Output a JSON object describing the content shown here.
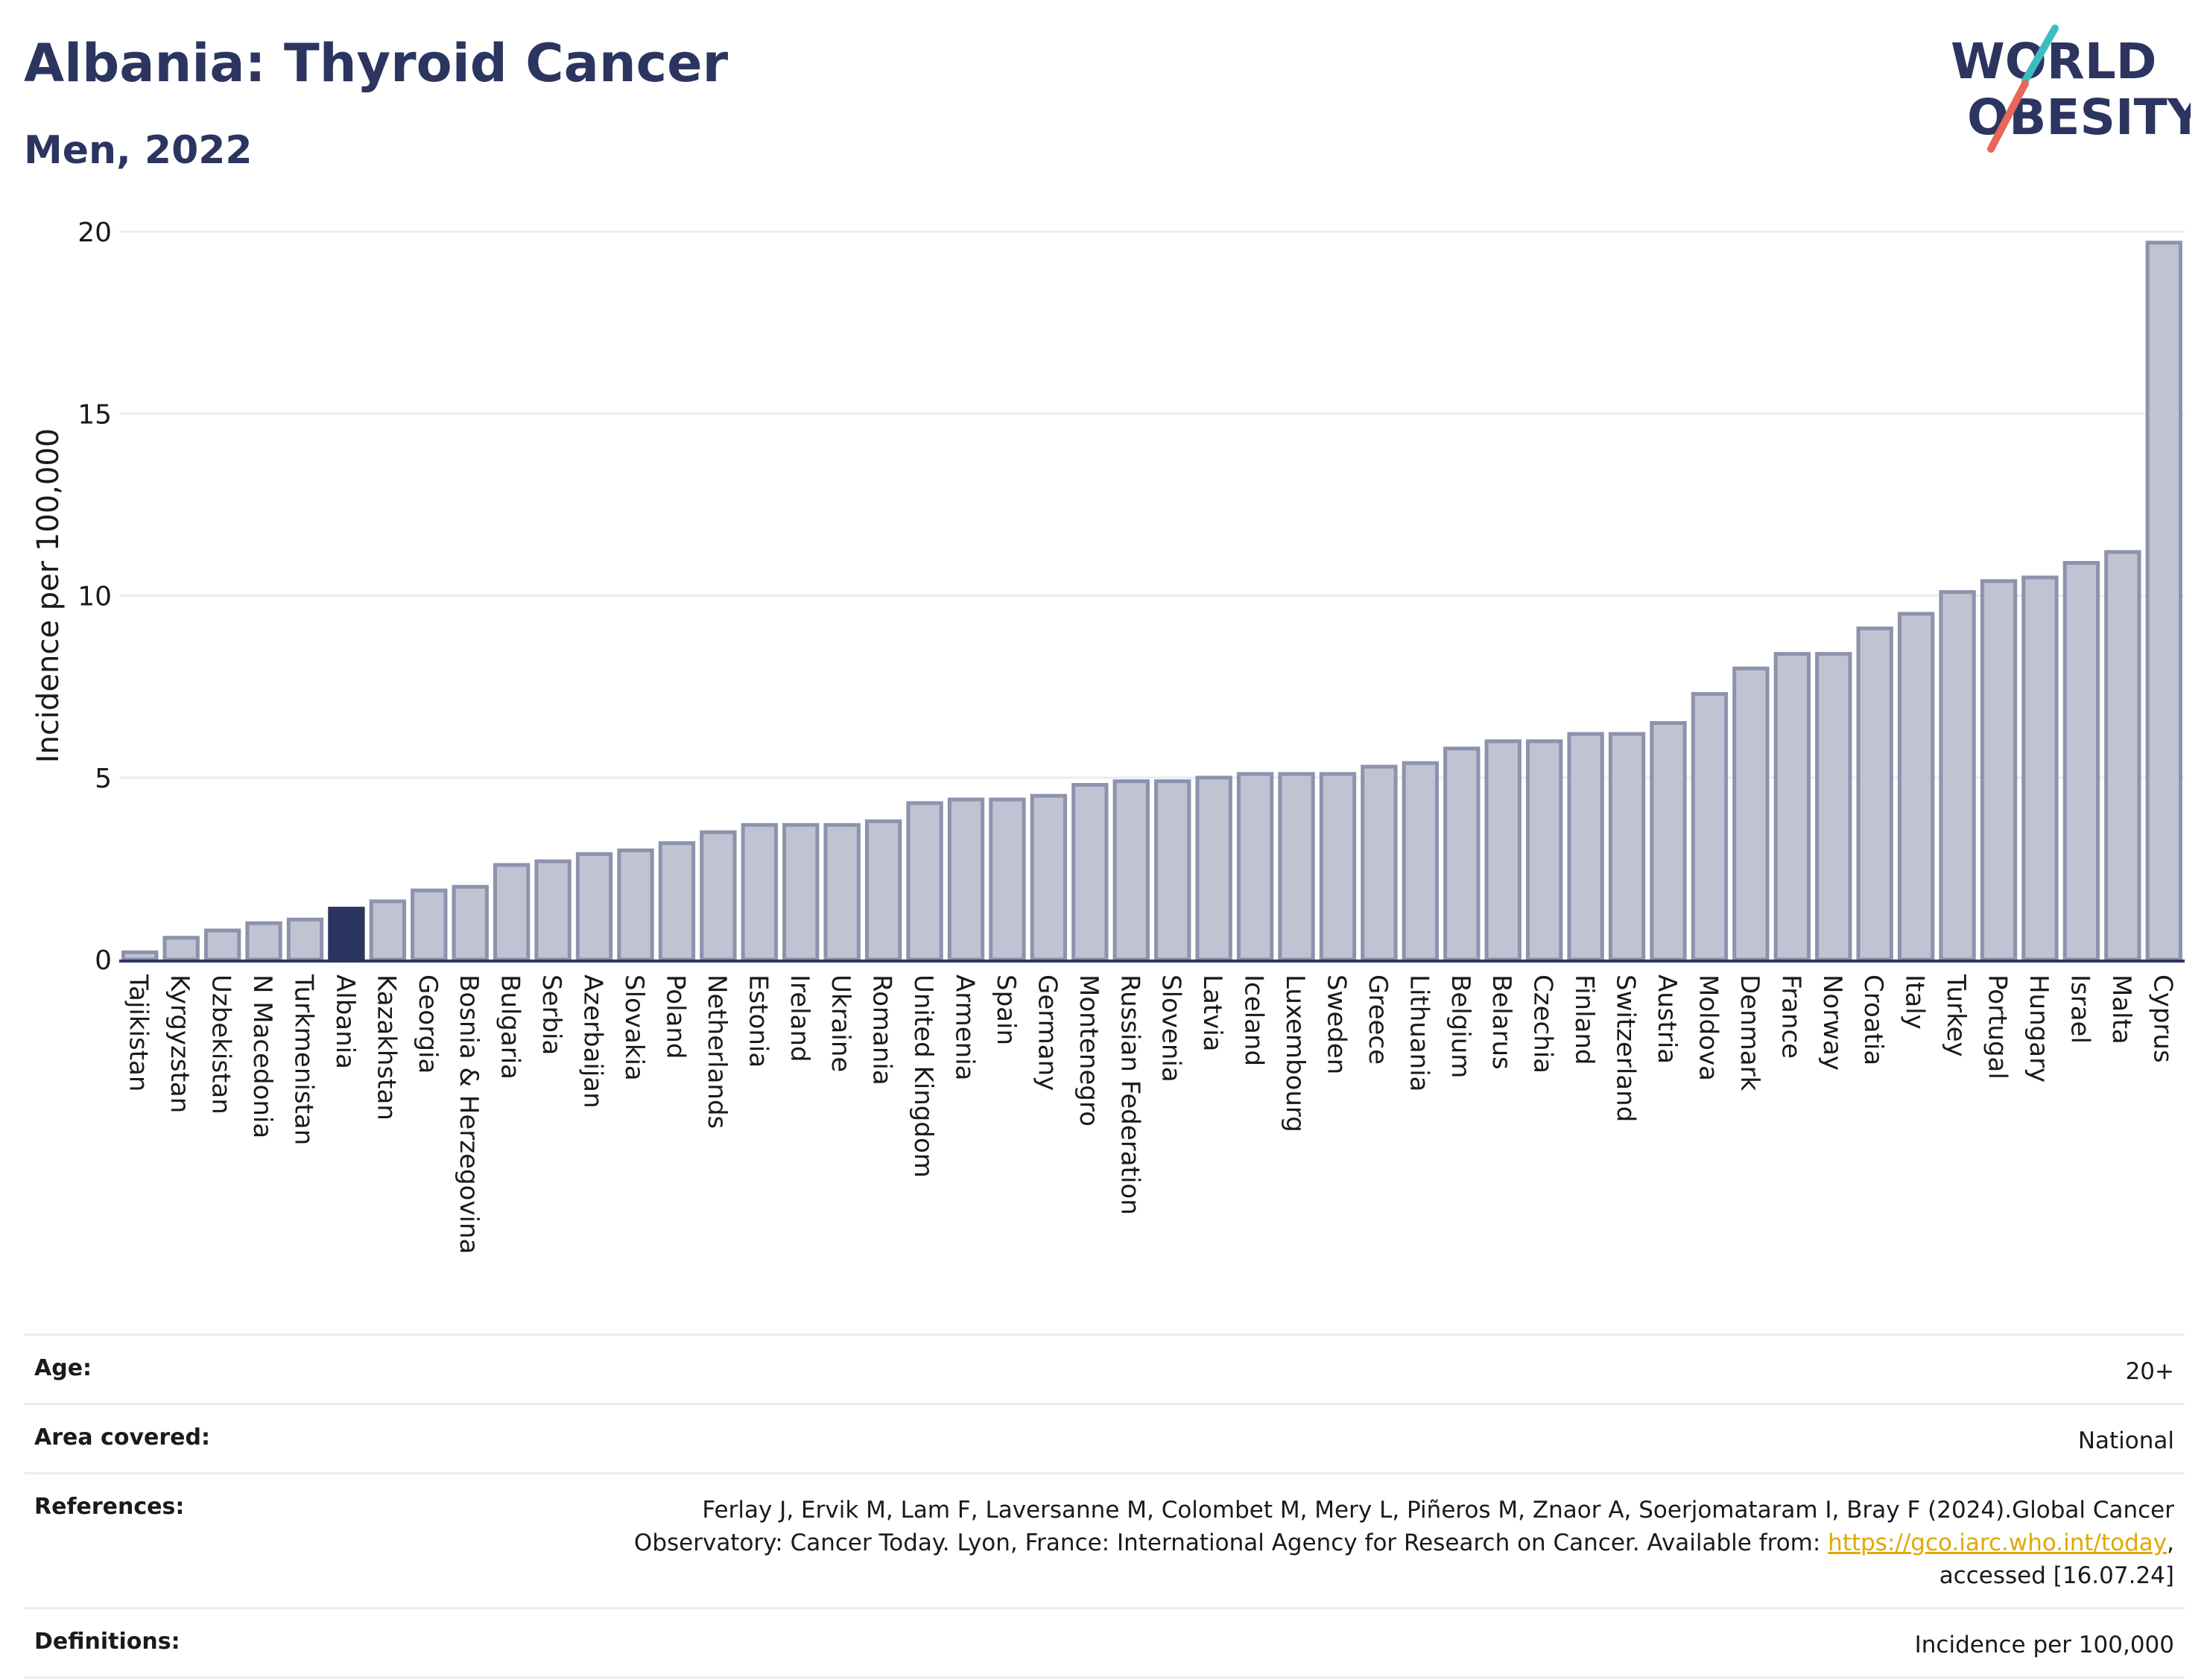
{
  "header": {
    "title": "Albania: Thyroid Cancer",
    "subtitle": "Men, 2022",
    "logo_line1": "WORLD",
    "logo_line2": "OBESITY"
  },
  "colors": {
    "title": "#2c3560",
    "bar_fill": "#bfc3d2",
    "bar_stroke": "#8d92ad",
    "highlight_fill": "#2c3560",
    "axis": "#2c3560",
    "grid": "#e6eef5",
    "logo_teal": "#3dbdbf",
    "logo_coral": "#e8675a",
    "link": "#e0a800"
  },
  "chart_data": {
    "type": "bar",
    "title": "Albania: Thyroid Cancer",
    "subtitle": "Men, 2022",
    "xlabel": "",
    "ylabel": "Incidence per 100,000",
    "ylim": [
      0,
      20
    ],
    "yticks": [
      0,
      5,
      10,
      15,
      20
    ],
    "grid": true,
    "highlight": "Albania",
    "categories": [
      "Tajikistan",
      "Kyrgyzstan",
      "Uzbekistan",
      "N Macedonia",
      "Turkmenistan",
      "Albania",
      "Kazakhstan",
      "Georgia",
      "Bosnia & Herzegovina",
      "Bulgaria",
      "Serbia",
      "Azerbaijan",
      "Slovakia",
      "Poland",
      "Netherlands",
      "Estonia",
      "Ireland",
      "Ukraine",
      "Romania",
      "United Kingdom",
      "Armenia",
      "Spain",
      "Germany",
      "Montenegro",
      "Russian Federation",
      "Slovenia",
      "Latvia",
      "Iceland",
      "Luxembourg",
      "Sweden",
      "Greece",
      "Lithuania",
      "Belgium",
      "Belarus",
      "Czechia",
      "Finland",
      "Switzerland",
      "Austria",
      "Moldova",
      "Denmark",
      "France",
      "Norway",
      "Croatia",
      "Italy",
      "Turkey",
      "Portugal",
      "Hungary",
      "Israel",
      "Malta",
      "Cyprus"
    ],
    "values": [
      0.2,
      0.6,
      0.8,
      1.0,
      1.1,
      1.4,
      1.6,
      1.9,
      2.0,
      2.6,
      2.7,
      2.9,
      3.0,
      3.2,
      3.5,
      3.7,
      3.7,
      3.7,
      3.8,
      4.3,
      4.4,
      4.4,
      4.5,
      4.8,
      4.9,
      4.9,
      5.0,
      5.1,
      5.1,
      5.1,
      5.3,
      5.4,
      5.8,
      6.0,
      6.0,
      6.2,
      6.2,
      6.5,
      7.3,
      8.0,
      8.4,
      8.4,
      9.1,
      9.5,
      10.1,
      10.4,
      10.5,
      10.9,
      11.2,
      19.7
    ]
  },
  "meta": {
    "age_label": "Age:",
    "age_value": "20+",
    "area_label": "Area covered:",
    "area_value": "National",
    "references_label": "References:",
    "references_line1": "Ferlay J, Ervik M, Lam F, Laversanne M, Colombet M, Mery L, Piñeros M, Znaor A, Soerjomataram I, Bray F (2024).Global Cancer",
    "references_line2_pre": "Observatory: Cancer Today. Lyon, France: International Agency for Research on Cancer. Available from: ",
    "references_link": "https://gco.iarc.who.int/today",
    "references_line2_post": ",",
    "references_line3": "accessed [16.07.24]",
    "definitions_label": "Definitions:",
    "definitions_value": "Incidence per 100,000"
  }
}
